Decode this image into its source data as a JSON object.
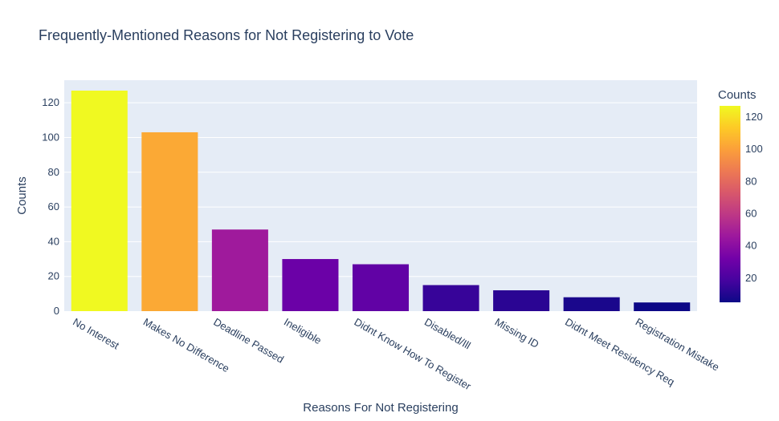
{
  "chart_data": {
    "type": "bar",
    "title": "Frequently-Mentioned Reasons for Not Registering to Vote",
    "xlabel": "Reasons For Not Registering",
    "ylabel": "Counts",
    "ylim": [
      0,
      133
    ],
    "yticks": [
      0,
      20,
      40,
      60,
      80,
      100,
      120
    ],
    "categories": [
      "No Interest",
      "Makes No Difference",
      "Deadline Passed",
      "Ineligible",
      "Didnt Know How To Register",
      "Disabled/Ill",
      "Missing ID",
      "Didnt Meet Residency Req",
      "Registration Mistake"
    ],
    "values": [
      127,
      103,
      47,
      30,
      27,
      15,
      12,
      8,
      5
    ],
    "colorbar": {
      "title": "Counts",
      "range": [
        5,
        127
      ],
      "ticks": [
        20,
        40,
        60,
        80,
        100,
        120
      ]
    }
  },
  "colors": {
    "plot_bg": "#E5ECF6",
    "grid": "#ffffff",
    "text": "#2a3f5f",
    "scale": [
      "#0d0887",
      "#46039f",
      "#7201a8",
      "#9c179e",
      "#bd3786",
      "#d8576b",
      "#ed7953",
      "#fb9f3a",
      "#fdca26",
      "#f0f921"
    ]
  }
}
